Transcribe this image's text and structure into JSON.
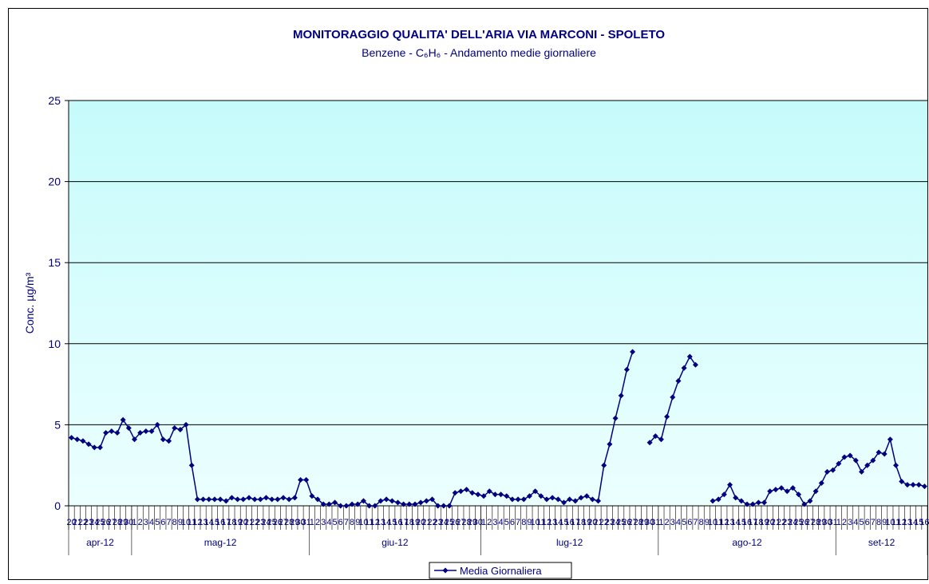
{
  "chart_data": {
    "type": "line",
    "title": "MONITORAGGIO QUALITA' DELL'ARIA  VIA MARCONI - SPOLETO",
    "subtitle": "Benzene - C₆H₆ - Andamento medie giornaliere",
    "y_label": "Conc. µg/m³",
    "months": [
      {
        "label": "apr-12",
        "days": [
          "20",
          "21",
          "22",
          "23",
          "24",
          "25",
          "26",
          "27",
          "28",
          "29",
          "30"
        ]
      },
      {
        "label": "mag-12",
        "days": [
          "1",
          "2",
          "3",
          "4",
          "5",
          "6",
          "7",
          "8",
          "9",
          "10",
          "11",
          "12",
          "13",
          "14",
          "15",
          "16",
          "17",
          "18",
          "19",
          "20",
          "21",
          "22",
          "23",
          "24",
          "25",
          "26",
          "27",
          "28",
          "29",
          "30",
          "31"
        ]
      },
      {
        "label": "giu-12",
        "days": [
          "1",
          "2",
          "3",
          "4",
          "5",
          "6",
          "7",
          "8",
          "9",
          "10",
          "11",
          "12",
          "13",
          "14",
          "15",
          "16",
          "17",
          "18",
          "19",
          "20",
          "21",
          "22",
          "23",
          "24",
          "25",
          "26",
          "27",
          "28",
          "29",
          "30"
        ]
      },
      {
        "label": "lug-12",
        "days": [
          "1",
          "2",
          "3",
          "4",
          "5",
          "6",
          "7",
          "8",
          "9",
          "10",
          "11",
          "12",
          "13",
          "14",
          "15",
          "16",
          "17",
          "18",
          "19",
          "20",
          "21",
          "22",
          "23",
          "24",
          "25",
          "26",
          "27",
          "28",
          "29",
          "30",
          "31"
        ]
      },
      {
        "label": "ago-12",
        "days": [
          "1",
          "2",
          "3",
          "4",
          "5",
          "6",
          "7",
          "8",
          "9",
          "10",
          "11",
          "12",
          "13",
          "14",
          "15",
          "16",
          "17",
          "18",
          "19",
          "20",
          "21",
          "22",
          "23",
          "24",
          "25",
          "26",
          "27",
          "28",
          "29",
          "30",
          "31"
        ]
      },
      {
        "label": "set-12",
        "days": [
          "1",
          "2",
          "3",
          "4",
          "5",
          "6",
          "7",
          "8",
          "9",
          "10",
          "11",
          "12",
          "13",
          "14",
          "15",
          "16"
        ]
      }
    ],
    "series": [
      {
        "name": "Media Giornaliera",
        "color": "#000080",
        "values": [
          4.2,
          4.1,
          4.0,
          3.8,
          3.6,
          3.6,
          4.5,
          4.6,
          4.5,
          5.3,
          4.8,
          4.1,
          4.5,
          4.6,
          4.6,
          5.0,
          4.1,
          4.0,
          4.8,
          4.7,
          5.0,
          2.5,
          0.4,
          0.4,
          0.4,
          0.4,
          0.4,
          0.3,
          0.5,
          0.4,
          0.4,
          0.5,
          0.4,
          0.4,
          0.5,
          0.4,
          0.4,
          0.5,
          0.4,
          0.5,
          1.6,
          1.6,
          0.6,
          0.4,
          0.1,
          0.1,
          0.2,
          0.0,
          0.0,
          0.1,
          0.1,
          0.3,
          0.0,
          0.0,
          0.3,
          0.4,
          0.3,
          0.2,
          0.1,
          0.1,
          0.1,
          0.2,
          0.3,
          0.4,
          0.0,
          0.0,
          0.0,
          0.8,
          0.9,
          1.0,
          0.8,
          0.7,
          0.6,
          0.9,
          0.7,
          0.7,
          0.6,
          0.4,
          0.4,
          0.4,
          0.6,
          0.9,
          0.6,
          0.4,
          0.5,
          0.4,
          0.2,
          0.4,
          0.3,
          0.5,
          0.6,
          0.4,
          0.3,
          2.5,
          3.8,
          5.4,
          6.8,
          8.4,
          9.5,
          null,
          null,
          3.9,
          4.3,
          4.1,
          5.5,
          6.7,
          7.7,
          8.5,
          9.2,
          8.7,
          null,
          null,
          0.3,
          0.4,
          0.7,
          1.3,
          0.5,
          0.3,
          0.1,
          0.1,
          0.2,
          0.2,
          0.9,
          1.0,
          1.1,
          0.9,
          1.1,
          0.7,
          0.1,
          0.3,
          0.9,
          1.4,
          2.1,
          2.2,
          2.6,
          3.0,
          3.1,
          2.8,
          2.1,
          2.5,
          2.8,
          3.3,
          3.2,
          4.1,
          2.5,
          1.5,
          1.3,
          1.3,
          1.3,
          1.2
        ]
      }
    ],
    "ylim": [
      0,
      25
    ],
    "yticks": [
      0,
      5,
      10,
      15,
      20,
      25
    ],
    "grid": true,
    "legend": "bottom"
  }
}
